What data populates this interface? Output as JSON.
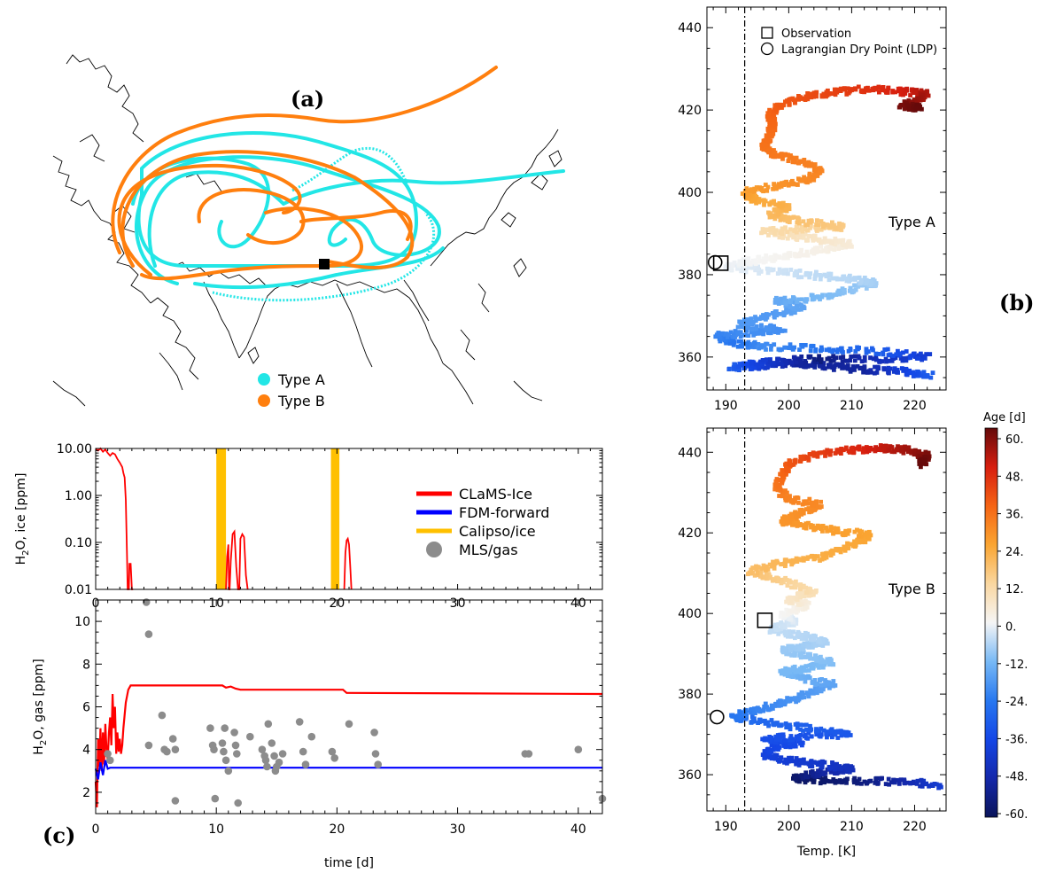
{
  "panel_labels": {
    "a": "(a)",
    "b": "(b)",
    "c": "(c)"
  },
  "colors": {
    "type_a": "#22e6e6",
    "type_b": "#ff7f0e",
    "claMS_ice": "#ff0000",
    "fdm_forward": "#0000ff",
    "calipso": "#ffc000",
    "mls": "#8c8c8c"
  },
  "map_legend": {
    "type_a": "Type A",
    "type_b": "Type B"
  },
  "chart_data": [
    {
      "id": "ice",
      "type": "line",
      "xlabel": "",
      "ylabel": "H2O, ice [ppm]",
      "ylabel_main": "H",
      "ylabel_sub": "2",
      "ylabel_rest": "O, ice [ppm]",
      "xlim": [
        0,
        42
      ],
      "ylim": [
        0.01,
        10
      ],
      "yscale": "log",
      "xticks": [
        0,
        10,
        20,
        30,
        40
      ],
      "yticks": [
        0.01,
        0.1,
        1,
        10
      ],
      "ytick_labels": [
        "0.01",
        "0.10",
        "1.00",
        "10.00"
      ],
      "legend": [
        "CLaMS-Ice",
        "FDM-forward",
        "Calipso/ice",
        "MLS/gas"
      ],
      "calipso_bands": [
        [
          10.0,
          10.8
        ],
        [
          19.5,
          20.2
        ]
      ],
      "series": [
        {
          "name": "CLaMS-Ice",
          "x": [
            0.0,
            0.2,
            0.4,
            0.6,
            0.8,
            1.0,
            1.2,
            1.4,
            1.6,
            1.8,
            2.0,
            2.2,
            2.3,
            2.4,
            2.5,
            2.6,
            2.65,
            2.7,
            2.75,
            2.8,
            2.9,
            3.0,
            3.1
          ],
          "y": [
            10,
            9,
            10,
            8.5,
            9.5,
            8,
            7,
            8,
            7.5,
            6,
            5,
            4,
            3,
            2.4,
            0.8,
            0.05,
            0.01,
            0.01,
            0.01,
            0.035,
            0.035,
            0.01,
            0.01
          ]
        },
        {
          "name": "CLaMS-Ice",
          "x": [
            10.8,
            10.9,
            11.0,
            11.05,
            11.1,
            11.2,
            11.35,
            11.5,
            11.65,
            11.8,
            11.9,
            12.0,
            12.15,
            12.3,
            12.45,
            12.6
          ],
          "y": [
            0.01,
            0.05,
            0.09,
            0.01,
            0.01,
            0.04,
            0.15,
            0.17,
            0.03,
            0.01,
            0.01,
            0.12,
            0.15,
            0.13,
            0.02,
            0.01
          ]
        },
        {
          "name": "CLaMS-Ice",
          "x": [
            20.6,
            20.7,
            20.8,
            20.9,
            21.0,
            21.1,
            21.2
          ],
          "y": [
            0.01,
            0.06,
            0.11,
            0.12,
            0.09,
            0.03,
            0.01
          ]
        }
      ]
    },
    {
      "id": "gas",
      "type": "line",
      "xlabel": "time [d]",
      "ylabel": "H2O, gas [ppm]",
      "ylabel_main": "H",
      "ylabel_sub": "2",
      "ylabel_rest": "O, gas [ppm]",
      "xlim": [
        0,
        42
      ],
      "ylim": [
        1,
        11
      ],
      "xticks": [
        0,
        10,
        20,
        30,
        40
      ],
      "yticks": [
        2,
        4,
        6,
        8,
        10
      ],
      "series": [
        {
          "name": "CLaMS-Ice",
          "x": [
            0.0,
            0.1,
            0.2,
            0.3,
            0.4,
            0.5,
            0.6,
            0.7,
            0.8,
            0.9,
            1.0,
            1.1,
            1.2,
            1.3,
            1.4,
            1.5,
            1.6,
            1.7,
            1.8,
            1.9,
            2.0,
            2.1,
            2.2,
            2.3,
            2.5,
            2.7,
            2.9,
            3.2,
            10.5,
            10.8,
            11.2,
            11.6,
            12.0,
            20.5,
            20.8,
            21.0,
            42.0
          ],
          "y": [
            2.5,
            1.3,
            4.5,
            3.2,
            5.0,
            3.0,
            4.8,
            3.3,
            5.2,
            4.0,
            3.5,
            4.8,
            5.5,
            4.2,
            6.6,
            5.0,
            6.0,
            3.8,
            4.8,
            3.9,
            4.5,
            3.8,
            4.2,
            5.0,
            6.2,
            6.8,
            7.0,
            7.0,
            7.0,
            6.9,
            6.95,
            6.85,
            6.8,
            6.8,
            6.65,
            6.65,
            6.6
          ]
        },
        {
          "name": "FDM-forward",
          "x": [
            0.0,
            0.2,
            0.4,
            0.6,
            0.8,
            1.0,
            1.2,
            42.0
          ],
          "y": [
            3.1,
            2.6,
            3.4,
            2.8,
            3.5,
            3.1,
            3.15,
            3.15
          ]
        },
        {
          "name": "MLS/gas",
          "type": "scatter",
          "x": [
            1.0,
            1.2,
            4.2,
            4.4,
            4.4,
            5.5,
            5.7,
            5.9,
            6.4,
            6.6,
            6.6,
            9.5,
            9.7,
            9.8,
            9.9,
            10.5,
            10.6,
            10.7,
            10.8,
            11.0,
            11.5,
            11.6,
            11.7,
            11.8,
            12.8,
            13.8,
            14.0,
            14.1,
            14.2,
            14.3,
            14.6,
            14.8,
            14.9,
            15.0,
            15.2,
            15.5,
            16.9,
            17.2,
            17.4,
            17.9,
            19.6,
            19.8,
            21.0,
            23.1,
            23.2,
            23.4,
            35.6,
            35.9,
            40.0,
            42.0
          ],
          "y": [
            3.8,
            3.5,
            10.9,
            9.4,
            4.2,
            5.6,
            4.0,
            3.9,
            4.5,
            4.0,
            1.6,
            5.0,
            4.2,
            4.0,
            1.7,
            4.3,
            3.9,
            5.0,
            3.5,
            3.0,
            4.8,
            4.2,
            3.8,
            1.5,
            4.6,
            4.0,
            3.7,
            3.5,
            3.2,
            5.2,
            4.3,
            3.7,
            3.0,
            3.2,
            3.4,
            3.8,
            5.3,
            3.9,
            3.3,
            4.6,
            3.9,
            3.6,
            5.2,
            4.8,
            3.8,
            3.3,
            3.8,
            3.8,
            4.0,
            1.7
          ]
        }
      ]
    },
    {
      "id": "theta_a",
      "type": "scatter",
      "xlabel": "",
      "ylabel": "Pot. Temp. [K]",
      "xlim": [
        187,
        225
      ],
      "ylim": [
        352,
        445
      ],
      "xticks": [
        190,
        200,
        210,
        220
      ],
      "yticks": [
        360,
        380,
        400,
        420,
        440
      ],
      "tp_temp": 193,
      "annotation": "Type A",
      "legend": [
        "Observation",
        "Lagrangian Dry Point (LDP)"
      ],
      "observation": {
        "x": 189.2,
        "y": 382.8
      },
      "ldp": {
        "x": 188.3,
        "y": 383.0
      },
      "path": [
        [
          222.5,
          355.5,
          -30
        ],
        [
          218,
          356.5,
          -38
        ],
        [
          212,
          357,
          -50
        ],
        [
          206,
          357.8,
          -50
        ],
        [
          201,
          358.5,
          -50
        ],
        [
          196,
          358,
          -40
        ],
        [
          191,
          357.5,
          -30
        ],
        [
          196,
          359,
          -40
        ],
        [
          205,
          359.5,
          -55
        ],
        [
          214,
          359.5,
          -45
        ],
        [
          222,
          360,
          -40
        ],
        [
          214,
          361.5,
          -30
        ],
        [
          205,
          362,
          -25
        ],
        [
          196,
          362.5,
          -20
        ],
        [
          191,
          363.5,
          -25
        ],
        [
          188.5,
          365,
          -22
        ],
        [
          194,
          366,
          -20
        ],
        [
          199,
          366.8,
          -20
        ],
        [
          192,
          368,
          -18
        ],
        [
          197,
          370,
          -18
        ],
        [
          202,
          372,
          -16
        ],
        [
          198,
          373.5,
          -15
        ],
        [
          205,
          374.5,
          -12
        ],
        [
          210,
          376.5,
          -10
        ],
        [
          214,
          378,
          -8
        ],
        [
          210,
          379,
          -6
        ],
        [
          203,
          380,
          -5
        ],
        [
          196,
          381,
          -3
        ],
        [
          190,
          382,
          -1
        ],
        [
          195,
          383.5,
          0
        ],
        [
          200,
          384.5,
          1
        ],
        [
          205,
          386,
          2
        ],
        [
          210,
          387.5,
          4
        ],
        [
          205,
          388.5,
          6
        ],
        [
          200,
          389.5,
          8
        ],
        [
          196,
          390.5,
          10
        ],
        [
          203,
          391,
          12
        ],
        [
          209,
          391.5,
          15
        ],
        [
          202,
          393,
          17
        ],
        [
          197,
          394.5,
          19
        ],
        [
          200,
          396.5,
          21
        ],
        [
          195,
          398,
          23
        ],
        [
          193,
          400,
          25
        ],
        [
          198,
          401.5,
          27
        ],
        [
          203,
          403,
          29
        ],
        [
          205,
          405.5,
          30
        ],
        [
          202,
          407.5,
          31
        ],
        [
          198,
          409,
          32
        ],
        [
          196,
          411,
          33
        ],
        [
          197,
          414,
          34
        ],
        [
          197.5,
          416.5,
          35
        ],
        [
          197,
          419,
          36
        ],
        [
          199,
          421.5,
          38
        ],
        [
          203,
          423.5,
          40
        ],
        [
          208,
          424.5,
          42
        ],
        [
          213,
          425,
          45
        ],
        [
          218,
          424.5,
          48
        ],
        [
          222,
          424,
          52
        ],
        [
          220,
          422,
          55
        ],
        [
          218,
          421,
          58
        ],
        [
          221,
          420.5,
          60
        ]
      ]
    },
    {
      "id": "theta_b",
      "type": "scatter",
      "xlabel": "Temp. [K]",
      "ylabel": "Pot. Temp. [K]",
      "xlim": [
        187,
        225
      ],
      "ylim": [
        351,
        446
      ],
      "xticks": [
        190,
        200,
        210,
        220
      ],
      "yticks": [
        360,
        380,
        400,
        420,
        440
      ],
      "tp_temp": 193,
      "annotation": "Type B",
      "observation": {
        "x": 196.2,
        "y": 398.3
      },
      "ldp": {
        "x": 188.6,
        "y": 374.3
      },
      "path": [
        [
          224,
          357.5,
          -40
        ],
        [
          218,
          358.2,
          -48
        ],
        [
          211,
          358.5,
          -55
        ],
        [
          204,
          358.7,
          -58
        ],
        [
          201,
          359,
          -58
        ],
        [
          205,
          360.5,
          -50
        ],
        [
          210,
          361.5,
          -45
        ],
        [
          205,
          362.5,
          -42
        ],
        [
          200,
          363.5,
          -40
        ],
        [
          196,
          365,
          -38
        ],
        [
          198,
          367,
          -36
        ],
        [
          202,
          368,
          -35
        ],
        [
          196,
          369,
          -34
        ],
        [
          203,
          369.5,
          -33
        ],
        [
          210,
          370,
          -32
        ],
        [
          203,
          371.5,
          -30
        ],
        [
          196,
          373,
          -28
        ],
        [
          191,
          374.5,
          -25
        ],
        [
          195,
          376,
          -22
        ],
        [
          199,
          378,
          -20
        ],
        [
          203,
          380,
          -18
        ],
        [
          207,
          382.5,
          -16
        ],
        [
          202,
          384,
          -14
        ],
        [
          199,
          385.5,
          -12
        ],
        [
          203,
          386.5,
          -12
        ],
        [
          207,
          388,
          -11
        ],
        [
          203,
          389.5,
          -10
        ],
        [
          199,
          391,
          -9
        ],
        [
          203,
          392,
          -8
        ],
        [
          206,
          393,
          -7
        ],
        [
          202,
          394.5,
          -6
        ],
        [
          197,
          396,
          -5
        ],
        [
          201,
          398,
          -3
        ],
        [
          199,
          400,
          0
        ],
        [
          203,
          402,
          3
        ],
        [
          200,
          403.5,
          6
        ],
        [
          204,
          405,
          9
        ],
        [
          201,
          407,
          12
        ],
        [
          197,
          409,
          15
        ],
        [
          194,
          410.5,
          18
        ],
        [
          199,
          412.5,
          20
        ],
        [
          205,
          414,
          22
        ],
        [
          210,
          417,
          23
        ],
        [
          213,
          419.5,
          24
        ],
        [
          207,
          420.5,
          25
        ],
        [
          202,
          422,
          26
        ],
        [
          199,
          423,
          27
        ],
        [
          202,
          425,
          28
        ],
        [
          205,
          427,
          29
        ],
        [
          200,
          428.5,
          30
        ],
        [
          198,
          431,
          32
        ],
        [
          199,
          434,
          35
        ],
        [
          200,
          437,
          38
        ],
        [
          204,
          439.5,
          42
        ],
        [
          210,
          440.5,
          46
        ],
        [
          215,
          441,
          50
        ],
        [
          219,
          440.5,
          54
        ],
        [
          222,
          439,
          58
        ],
        [
          221,
          437,
          60
        ]
      ]
    }
  ],
  "colorbar": {
    "title": "Age [d]",
    "ticks": [
      60,
      48,
      36,
      24,
      12,
      0,
      -12,
      -24,
      -36,
      -48,
      -60
    ],
    "tick_labels": [
      "60.",
      "48.",
      "36.",
      "24.",
      "12.",
      "0.",
      "-12.",
      "-24.",
      "-36.",
      "-48.",
      "-60."
    ],
    "range": [
      -60,
      60
    ]
  }
}
